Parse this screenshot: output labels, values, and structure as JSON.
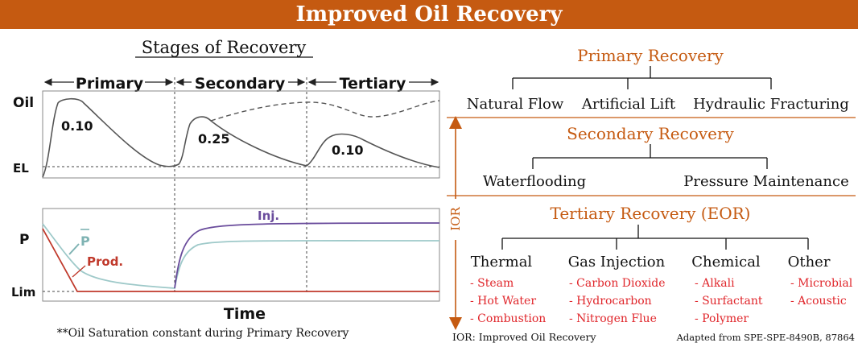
{
  "banner_title": "Improved Oil Recovery",
  "colors": {
    "banner": "#c55a11",
    "heading_orange": "#c55a11",
    "item_red": "#e0262b",
    "inj_curve": "#6a4c9c",
    "pbar_curve": "#9ec9c9",
    "prod_line": "#c0392b"
  },
  "left": {
    "title": "Stages of Recovery",
    "stages": [
      "Primary",
      "Secondary",
      "Tertiary"
    ],
    "top_chart": {
      "y_label": "Oil",
      "baseline_label": "EL",
      "values": [
        "0.10",
        "0.25",
        "0.10"
      ]
    },
    "bottom_chart": {
      "y_label": "P",
      "limit_label": "Lim",
      "pbar_label": "P",
      "prod_label": "Prod.",
      "inj_label": "Inj."
    },
    "x_label": "Time",
    "footnote": "**Oil Saturation constant during Primary Recovery"
  },
  "right": {
    "primary": {
      "title": "Primary Recovery",
      "items": [
        "Natural Flow",
        "Artificial Lift",
        "Hydraulic Fracturing"
      ]
    },
    "secondary": {
      "title": "Secondary Recovery",
      "items": [
        "Waterflooding",
        "Pressure Maintenance"
      ]
    },
    "tertiary": {
      "title": "Tertiary Recovery (EOR)",
      "categories": [
        {
          "name": "Thermal",
          "items": [
            "- Steam",
            "- Hot Water",
            "- Combustion"
          ]
        },
        {
          "name": "Gas Injection",
          "items": [
            "- Carbon Dioxide",
            "- Hydrocarbon",
            "- Nitrogen Flue"
          ]
        },
        {
          "name": "Chemical",
          "items": [
            "- Alkali",
            "- Surfactant",
            "- Polymer"
          ]
        },
        {
          "name": "Other",
          "items": [
            "- Microbial",
            "- Acoustic"
          ]
        }
      ]
    },
    "ior_label": "IOR",
    "ior_note": "IOR: Improved Oil Recovery",
    "source": "Adapted from SPE-SPE-8490B, 87864"
  }
}
